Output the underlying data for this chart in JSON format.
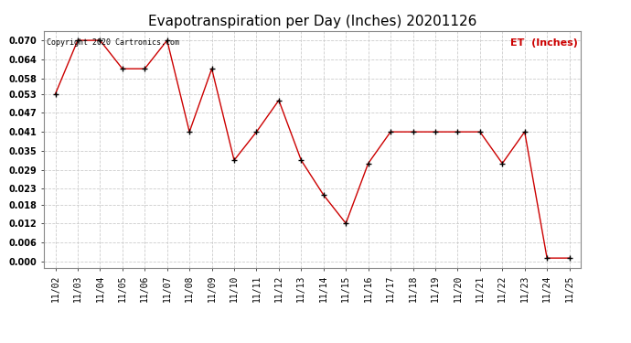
{
  "title": "Evapotranspiration per Day (Inches) 20201126",
  "copyright_text": "Copyright 2020 Cartronics.com",
  "legend_label": "ET  (Inches)",
  "x_labels": [
    "11/02",
    "11/03",
    "11/04",
    "11/05",
    "11/06",
    "11/07",
    "11/08",
    "11/09",
    "11/10",
    "11/11",
    "11/12",
    "11/13",
    "11/14",
    "11/15",
    "11/16",
    "11/17",
    "11/18",
    "11/19",
    "11/20",
    "11/21",
    "11/22",
    "11/23",
    "11/24",
    "11/25"
  ],
  "et_values": [
    0.053,
    0.07,
    0.07,
    0.061,
    0.061,
    0.07,
    0.041,
    0.061,
    0.032,
    0.041,
    0.051,
    0.032,
    0.021,
    0.012,
    0.031,
    0.041,
    0.041,
    0.041,
    0.041,
    0.041,
    0.031,
    0.041,
    0.001,
    0.001
  ],
  "line_color": "#cc0000",
  "marker_color": "#000000",
  "grid_color": "#cccccc",
  "background_color": "#ffffff",
  "ylim": [
    -0.002,
    0.073
  ],
  "yticks": [
    0.0,
    0.006,
    0.012,
    0.018,
    0.023,
    0.029,
    0.035,
    0.041,
    0.047,
    0.053,
    0.058,
    0.064,
    0.07
  ],
  "title_fontsize": 11,
  "tick_fontsize": 7,
  "copyright_fontsize": 6,
  "legend_fontsize": 8
}
